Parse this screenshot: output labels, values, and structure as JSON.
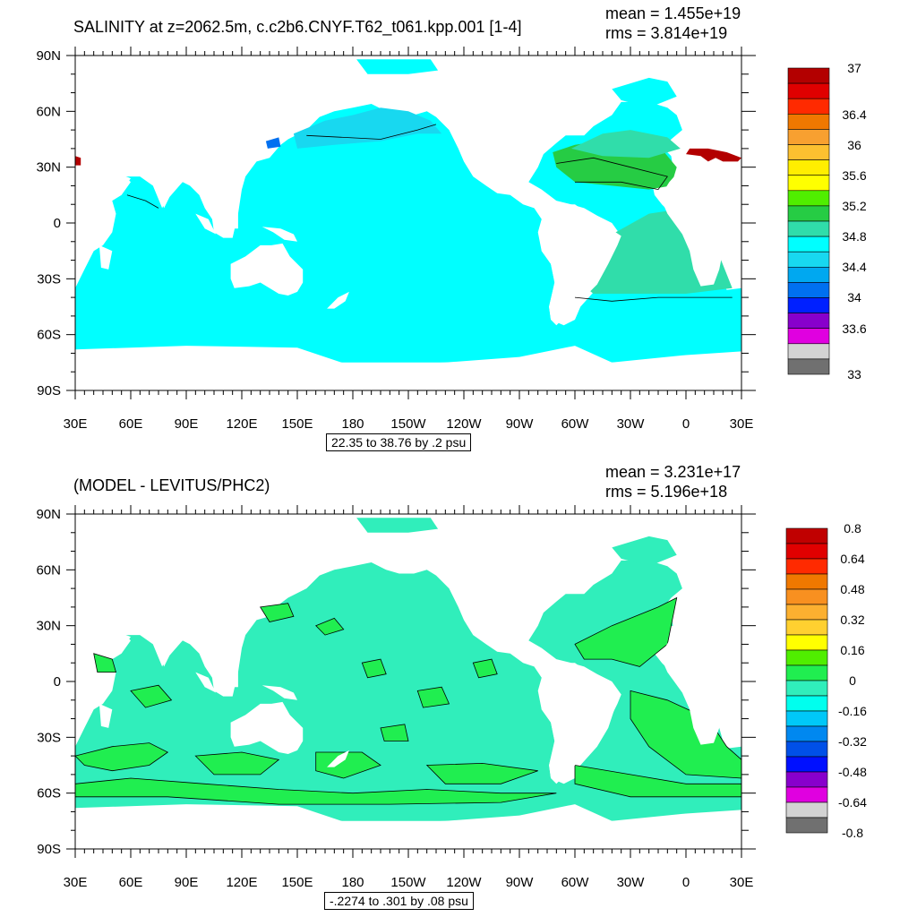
{
  "panels": [
    {
      "title": "SALINITY at z=2062.5m, c.c2b6.CNYF.T62_t061.kpp.001 [1-4]",
      "mean_text": "mean = 1.455e+19",
      "rms_text": "rms = 3.814e+19",
      "contour_info": "22.35 to 38.76 by .2 psu"
    },
    {
      "title": "(MODEL - LEVITUS/PHC2)",
      "mean_text": "mean = 3.231e+17",
      "rms_text": "rms = 5.196e+18",
      "contour_info": "-.2274 to .301 by .08 psu"
    }
  ],
  "chart_data": [
    {
      "type": "heatmap",
      "title": "SALINITY at z=2062.5m, c.c2b6.CNYF.T62_t061.kpp.001 [1-4]",
      "projection": "cylindrical-equidistant",
      "x_ticks": [
        "30E",
        "60E",
        "90E",
        "120E",
        "150E",
        "180",
        "150W",
        "120W",
        "90W",
        "60W",
        "30W",
        "0",
        "30E"
      ],
      "y_ticks": [
        "90N",
        "60N",
        "30N",
        "0",
        "30S",
        "60S",
        "90S"
      ],
      "colorbar_labels": [
        "37",
        "36.4",
        "36",
        "35.6",
        "35.2",
        "34.8",
        "34.4",
        "34",
        "33.6",
        "33"
      ],
      "colorbar_colors": [
        "#b30000",
        "#e00000",
        "#ff2a00",
        "#f07800",
        "#f8a030",
        "#fcc030",
        "#ffee00",
        "#ffff00",
        "#50ee00",
        "#26cc44",
        "#30ddaa",
        "#00ffff",
        "#18d8f0",
        "#00a8f0",
        "#0070f0",
        "#0020ff",
        "#8800cc",
        "#e000e0",
        "#d3d3d3",
        "#707070"
      ],
      "dominant_color": "#00ffff"
    },
    {
      "type": "heatmap",
      "title": "(MODEL - LEVITUS/PHC2)",
      "projection": "cylindrical-equidistant",
      "x_ticks": [
        "30E",
        "60E",
        "90E",
        "120E",
        "150E",
        "180",
        "150W",
        "120W",
        "90W",
        "60W",
        "30W",
        "0",
        "30E"
      ],
      "y_ticks": [
        "90N",
        "60N",
        "30N",
        "0",
        "30S",
        "60S",
        "90S"
      ],
      "colorbar_labels": [
        "0.8",
        "0.64",
        "0.48",
        "0.32",
        "0.16",
        "0",
        "-0.16",
        "-0.32",
        "-0.48",
        "-0.64",
        "-0.8"
      ],
      "colorbar_colors": [
        "#c00000",
        "#e00000",
        "#ff2a00",
        "#f07800",
        "#f89020",
        "#fcb030",
        "#ffd030",
        "#ffff00",
        "#50ee00",
        "#20ee50",
        "#30eebb",
        "#00ffee",
        "#00c8f8",
        "#0088f0",
        "#0050e8",
        "#0010ff",
        "#8800cc",
        "#e000e0",
        "#d3d3d3",
        "#707070"
      ],
      "dominant_color": "#30eebb"
    }
  ]
}
